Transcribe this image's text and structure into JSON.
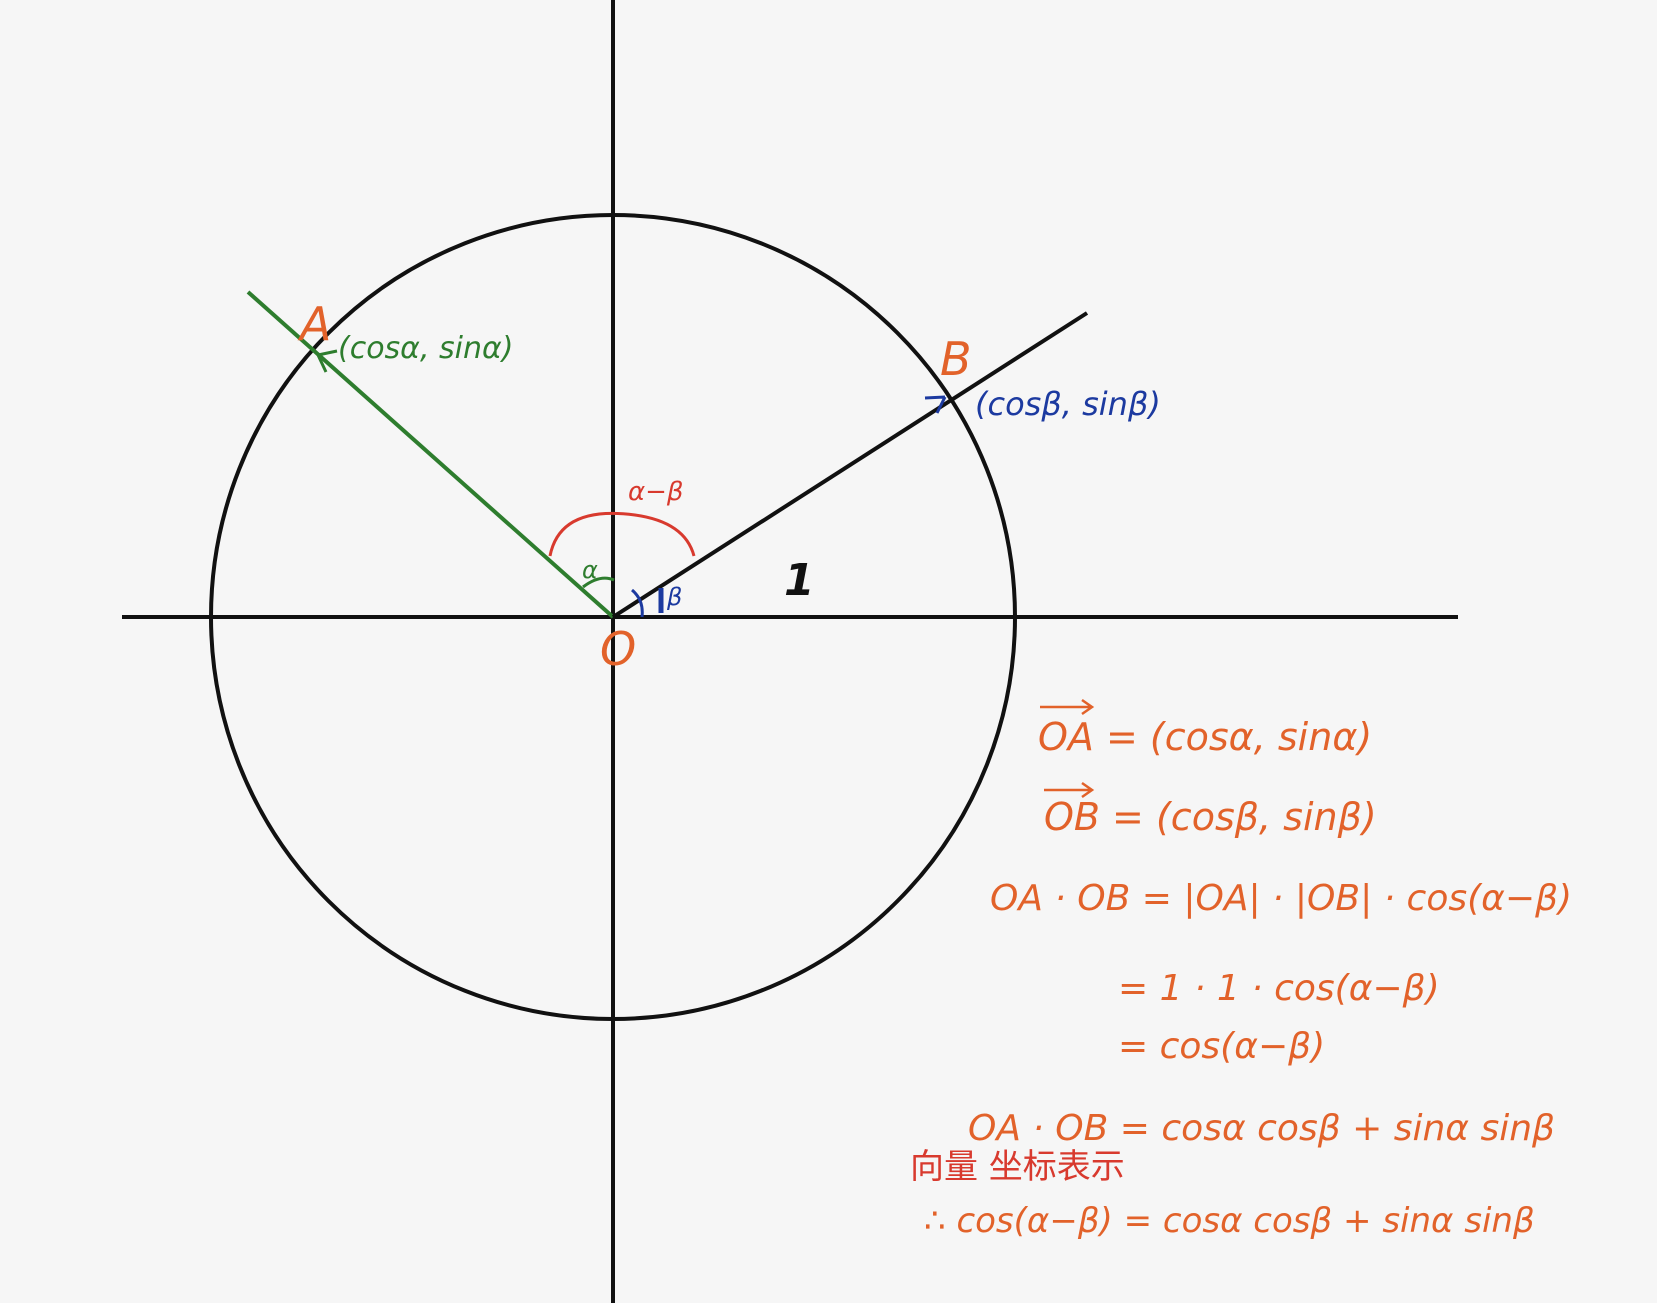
{
  "diagram": {
    "point_a_label": "A",
    "point_a_coords": "(cosα, sinα)",
    "point_b_label": "B",
    "point_b_coords": "(cosβ, sinβ)",
    "origin_label": "O",
    "radius_label": "1",
    "angle_alpha_label": "α",
    "angle_beta_label": "β",
    "angle_diff_label": "α−β"
  },
  "derivation": {
    "line1": "OA = (cosα, sinα)",
    "line2": "OB = (cosβ, sinβ)",
    "line3": "OA · OB = |OA| · |OB| · cos(α−β)",
    "line4": "= 1 · 1 · cos(α−β)",
    "line5": "= cos(α−β)",
    "line6": "OA · OB = cosα cosβ + sinα sinβ",
    "note": "向量 坐标表示",
    "conclusion": "∴ cos(α−β) = cosα cosβ + sinα sinβ"
  },
  "colors": {
    "accent_orange": "#e2622a",
    "green": "#2e7d2e",
    "blue": "#1c3aa0",
    "red": "#d83a2e",
    "ink": "#111111"
  }
}
